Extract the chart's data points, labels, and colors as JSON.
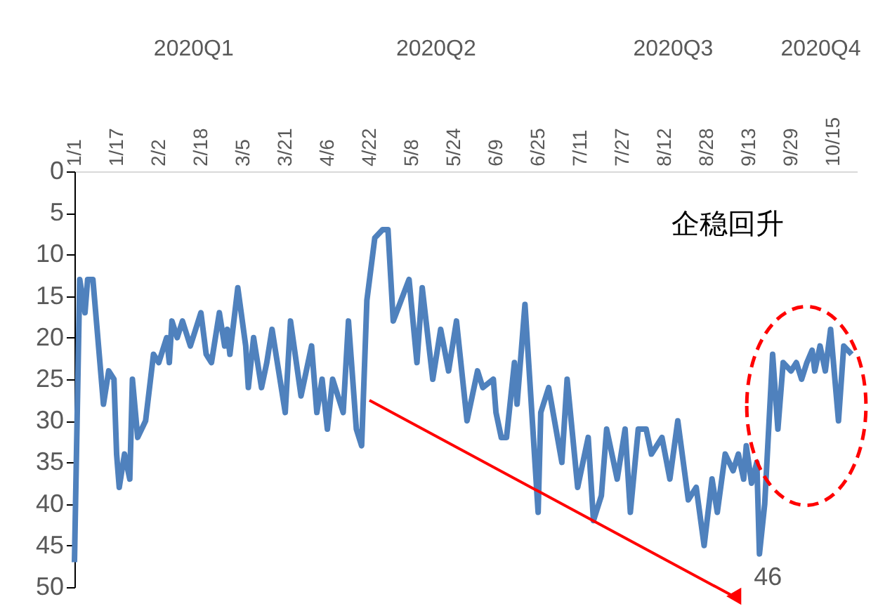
{
  "chart_data": {
    "type": "line",
    "x": [
      "2020-01-01",
      "2020-01-03",
      "2020-01-05",
      "2020-01-06",
      "2020-01-08",
      "2020-01-12",
      "2020-01-14",
      "2020-01-16",
      "2020-01-17",
      "2020-01-18",
      "2020-01-20",
      "2020-01-22",
      "2020-01-23",
      "2020-01-25",
      "2020-01-28",
      "2020-01-31",
      "2020-02-02",
      "2020-02-05",
      "2020-02-06",
      "2020-02-07",
      "2020-02-09",
      "2020-02-11",
      "2020-02-14",
      "2020-02-18",
      "2020-02-20",
      "2020-02-22",
      "2020-02-25",
      "2020-02-27",
      "2020-02-28",
      "2020-02-29",
      "2020-03-03",
      "2020-03-06",
      "2020-03-07",
      "2020-03-09",
      "2020-03-12",
      "2020-03-14",
      "2020-03-16",
      "2020-03-21",
      "2020-03-23",
      "2020-03-27",
      "2020-03-31",
      "2020-04-02",
      "2020-04-04",
      "2020-04-06",
      "2020-04-08",
      "2020-04-12",
      "2020-04-14",
      "2020-04-17",
      "2020-04-19",
      "2020-04-21",
      "2020-04-22",
      "2020-04-24",
      "2020-04-27",
      "2020-04-29",
      "2020-05-01",
      "2020-05-04",
      "2020-05-07",
      "2020-05-10",
      "2020-05-12",
      "2020-05-16",
      "2020-05-19",
      "2020-05-22",
      "2020-05-25",
      "2020-05-29",
      "2020-06-02",
      "2020-06-04",
      "2020-06-08",
      "2020-06-09",
      "2020-06-11",
      "2020-06-13",
      "2020-06-16",
      "2020-06-17",
      "2020-06-20",
      "2020-06-25",
      "2020-06-26",
      "2020-06-29",
      "2020-07-04",
      "2020-07-06",
      "2020-07-10",
      "2020-07-12",
      "2020-07-14",
      "2020-07-16",
      "2020-07-19",
      "2020-07-21",
      "2020-07-25",
      "2020-07-28",
      "2020-07-30",
      "2020-08-02",
      "2020-08-05",
      "2020-08-07",
      "2020-08-11",
      "2020-08-14",
      "2020-08-17",
      "2020-08-21",
      "2020-08-24",
      "2020-08-27",
      "2020-08-30",
      "2020-09-01",
      "2020-09-04",
      "2020-09-07",
      "2020-09-09",
      "2020-09-11",
      "2020-09-12",
      "2020-09-14",
      "2020-09-16",
      "2020-09-17",
      "2020-09-19",
      "2020-09-22",
      "2020-09-24",
      "2020-09-26",
      "2020-09-29",
      "2020-10-01",
      "2020-10-03",
      "2020-10-05",
      "2020-10-07",
      "2020-10-08",
      "2020-10-10",
      "2020-10-12",
      "2020-10-14",
      "2020-10-17",
      "2020-10-19",
      "2020-10-22"
    ],
    "series": [
      {
        "color": "#4f81bd",
        "values": [
          47,
          13,
          17,
          13,
          13,
          28,
          24,
          25,
          34,
          38,
          34,
          37,
          25,
          32,
          30,
          22,
          23,
          20,
          23,
          18,
          20,
          18,
          21,
          17,
          22,
          23,
          17,
          21,
          19,
          22,
          14,
          21,
          26,
          20,
          26,
          23,
          19,
          29,
          18,
          27,
          21,
          29,
          25,
          31,
          25,
          29,
          18,
          31,
          33,
          15.5,
          13,
          8,
          7,
          7,
          18,
          15.5,
          13,
          23,
          14,
          25,
          19,
          24,
          18,
          30,
          24,
          26,
          25,
          29,
          32,
          32,
          23,
          28,
          16,
          41,
          29,
          26,
          35,
          25,
          38,
          35,
          32,
          42,
          39,
          31,
          37,
          31,
          41,
          31,
          31,
          34,
          32,
          37,
          30,
          39.5,
          38,
          45,
          37,
          41,
          34,
          36,
          34,
          37,
          33,
          37.5,
          35,
          46,
          40,
          22,
          31,
          23,
          24,
          23,
          25,
          23,
          21.5,
          24,
          21,
          24,
          19,
          30,
          21,
          22
        ]
      }
    ],
    "xlim": [
      "2020-01-01",
      "2020-10-24"
    ],
    "xticks": [
      {
        "value": "2020-01-01",
        "label": "1/1"
      },
      {
        "value": "2020-01-17",
        "label": "1/17"
      },
      {
        "value": "2020-02-02",
        "label": "2/2"
      },
      {
        "value": "2020-02-18",
        "label": "2/18"
      },
      {
        "value": "2020-03-05",
        "label": "3/5"
      },
      {
        "value": "2020-03-21",
        "label": "3/21"
      },
      {
        "value": "2020-04-06",
        "label": "4/6"
      },
      {
        "value": "2020-04-22",
        "label": "4/22"
      },
      {
        "value": "2020-05-08",
        "label": "5/8"
      },
      {
        "value": "2020-05-24",
        "label": "5/24"
      },
      {
        "value": "2020-06-09",
        "label": "6/9"
      },
      {
        "value": "2020-06-25",
        "label": "6/25"
      },
      {
        "value": "2020-07-11",
        "label": "7/11"
      },
      {
        "value": "2020-07-27",
        "label": "7/27"
      },
      {
        "value": "2020-08-12",
        "label": "8/12"
      },
      {
        "value": "2020-08-28",
        "label": "8/28"
      },
      {
        "value": "2020-09-13",
        "label": "9/13"
      },
      {
        "value": "2020-09-29",
        "label": "9/29"
      },
      {
        "value": "2020-10-15",
        "label": "10/15"
      }
    ],
    "x2lim": [
      "2020-01-01",
      "2020-10-24"
    ],
    "x2ticks": [
      {
        "value": "2020-02-15",
        "label": "2020Q1"
      },
      {
        "value": "2020-05-17",
        "label": "2020Q2"
      },
      {
        "value": "2020-08-15",
        "label": "2020Q3"
      },
      {
        "value": "2020-10-10",
        "label": "2020Q4"
      }
    ],
    "ylim": [
      50,
      0
    ],
    "yticks": [
      0,
      5,
      10,
      15,
      20,
      25,
      30,
      35,
      40,
      45,
      50
    ],
    "grid": false,
    "marker": "none",
    "line_style": "solid",
    "annotations": [
      "企稳回升",
      {
        "text": "46",
        "x": "2020-09-17",
        "y": 46
      }
    ]
  }
}
